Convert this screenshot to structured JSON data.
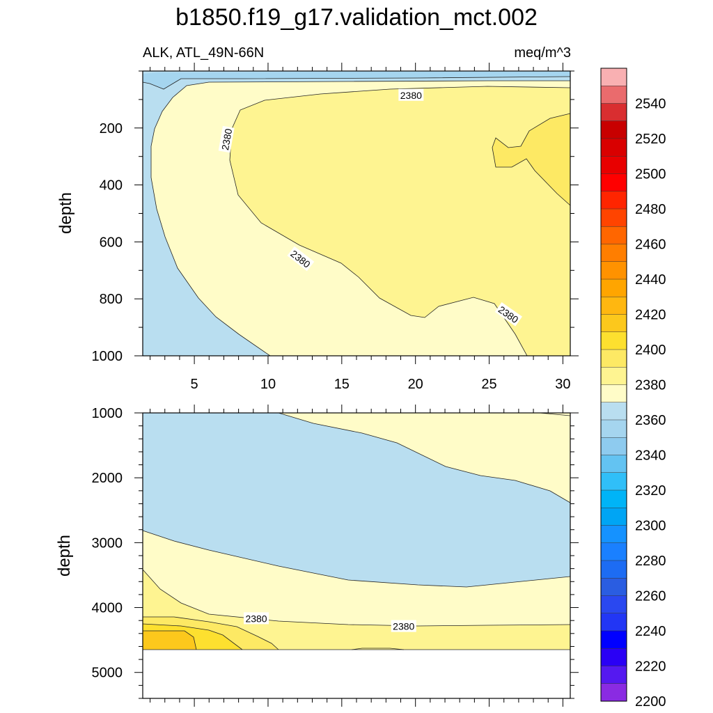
{
  "chart_data": {
    "type": "contour",
    "title": "b1850.f19_g17.validation_mct.002",
    "variable_label": "ALK, ATL_49N-66N",
    "units_label": "meq/m^3",
    "x_range": [
      1.5,
      30.5
    ],
    "x_ticks": [
      "5",
      "10",
      "15",
      "20",
      "25",
      "30"
    ],
    "x_tick_values": [
      5,
      10,
      15,
      20,
      25,
      30
    ],
    "panels": [
      {
        "name": "upper",
        "ylabel": "depth",
        "ylim": [
          0,
          1000
        ],
        "y_ticks": [
          "200",
          "400",
          "600",
          "800",
          "1000"
        ],
        "y_tick_values": [
          200,
          400,
          600,
          800,
          1000
        ],
        "contour_labels": [
          {
            "text": "2380",
            "x": 19.7,
            "y": 85
          },
          {
            "text": "2380",
            "x": 7.2,
            "y": 240
          },
          {
            "text": "2380",
            "x": 12.2,
            "y": 660
          },
          {
            "text": "2380",
            "x": 26.3,
            "y": 855
          }
        ]
      },
      {
        "name": "lower",
        "ylabel": "depth",
        "ylim": [
          1000,
          5400
        ],
        "y_ticks": [
          "1000",
          "2000",
          "3000",
          "4000",
          "5000"
        ],
        "y_tick_values": [
          1000,
          2000,
          3000,
          4000,
          5000
        ],
        "contour_labels": [
          {
            "text": "2380",
            "x": 9.2,
            "y": 4170
          },
          {
            "text": "2380",
            "x": 19.2,
            "y": 4290
          }
        ]
      }
    ],
    "colorbar": {
      "labels": [
        "2540",
        "2520",
        "2500",
        "2480",
        "2460",
        "2440",
        "2420",
        "2400",
        "2380",
        "2360",
        "2340",
        "2320",
        "2300",
        "2280",
        "2260",
        "2240",
        "2220",
        "2200"
      ],
      "colors": [
        "#f9b0b2",
        "#ea6b6d",
        "#d92e30",
        "#c80000",
        "#d90000",
        "#e80000",
        "#ff0000",
        "#ff2500",
        "#ff4400",
        "#ff6600",
        "#ff7e00",
        "#ff9200",
        "#ffa500",
        "#ffb710",
        "#fcc81c",
        "#fde02f",
        "#fde964",
        "#fef491",
        "#fffcc8",
        "#b9def0",
        "#a5d5ef",
        "#8ecbef",
        "#63c3f2",
        "#30bff8",
        "#00b4f7",
        "#00a5f4",
        "#1592ff",
        "#1a80ff",
        "#1d6cf3",
        "#2a5de1",
        "#2a48f0",
        "#2236f5",
        "#0000ff",
        "#2a00f5",
        "#5519f0",
        "#8a2be2"
      ]
    },
    "fill_colors": {
      "c2350": "#a5d5ef",
      "c2360": "#b9def0",
      "c2370": "#fffcc8",
      "c2380": "#fef491",
      "c2390": "#fde964",
      "c2400": "#fde02f",
      "c2410": "#fcc81c"
    }
  }
}
